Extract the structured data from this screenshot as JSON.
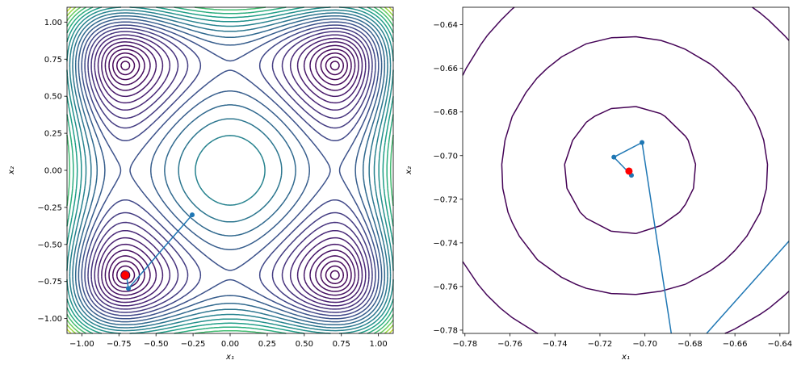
{
  "chart_data": [
    {
      "type": "contour",
      "surface": "(x1^2-0.5)^2 + (x2^2-0.5)^2",
      "levels": [
        0.00175,
        0.007,
        0.01575,
        0.028,
        0.04375,
        0.063,
        0.08575,
        0.112,
        0.14175,
        0.175,
        0.21175,
        0.252,
        0.29575,
        0.343,
        0.39375,
        0.448,
        0.50575,
        0.567,
        0.63175,
        0.7,
        0.77175,
        0.847,
        0.92575,
        1.008
      ],
      "colormap": "viridis",
      "xlim": [
        -1.1,
        1.1
      ],
      "ylim": [
        -1.1,
        1.1
      ],
      "xticks": [
        -1.0,
        -0.75,
        -0.5,
        -0.25,
        0.0,
        0.25,
        0.5,
        0.75,
        1.0
      ],
      "xtick_labels": [
        "−1.00",
        "−0.75",
        "−0.50",
        "−0.25",
        "0.00",
        "0.25",
        "0.50",
        "0.75",
        "1.00"
      ],
      "yticks": [
        -1.0,
        -0.75,
        -0.5,
        -0.25,
        0.0,
        0.25,
        0.5,
        0.75,
        1.0
      ],
      "ytick_labels": [
        "−1.00",
        "−0.75",
        "−0.50",
        "−0.25",
        "0.00",
        "0.25",
        "0.50",
        "0.75",
        "1.00"
      ],
      "xlabel": "x₁",
      "ylabel": "x₂",
      "path": {
        "color": "#1f77b4",
        "points": [
          [
            -0.256,
            -0.3
          ],
          [
            -0.686,
            -0.797
          ],
          [
            -0.7013,
            -0.694
          ],
          [
            -0.7138,
            -0.7007
          ],
          [
            -0.706,
            -0.709
          ]
        ]
      },
      "minimum": {
        "color": "#ff0000",
        "point": [
          -0.7071,
          -0.7071
        ]
      }
    },
    {
      "type": "contour",
      "surface": "(x1^2-0.5)^2 + (x2^2-0.5)^2",
      "levels": [
        0.00175,
        0.007,
        0.01575,
        0.028,
        0.04375,
        0.063,
        0.08575,
        0.112,
        0.14175,
        0.175,
        0.21175,
        0.252,
        0.29575,
        0.343,
        0.39375,
        0.448,
        0.50575,
        0.567,
        0.63175,
        0.7,
        0.77175,
        0.847,
        0.92575,
        1.008
      ],
      "colormap": "viridis",
      "xlim": [
        -0.781,
        -0.636
      ],
      "ylim": [
        -0.7815,
        -0.632
      ],
      "xticks": [
        -0.78,
        -0.76,
        -0.74,
        -0.72,
        -0.7,
        -0.68,
        -0.66,
        -0.64
      ],
      "xtick_labels": [
        "−0.78",
        "−0.76",
        "−0.74",
        "−0.72",
        "−0.70",
        "−0.68",
        "−0.66",
        "−0.64"
      ],
      "yticks": [
        -0.78,
        -0.76,
        -0.74,
        -0.72,
        -0.7,
        -0.68,
        -0.66,
        -0.64
      ],
      "ytick_labels": [
        "−0.78",
        "−0.76",
        "−0.74",
        "−0.72",
        "−0.70",
        "−0.68",
        "−0.66",
        "−0.64"
      ],
      "xlabel": "x₁",
      "ylabel": "x₂",
      "path": {
        "color": "#1f77b4",
        "points": [
          [
            -0.256,
            -0.3
          ],
          [
            -0.686,
            -0.797
          ],
          [
            -0.7013,
            -0.694
          ],
          [
            -0.7138,
            -0.7007
          ],
          [
            -0.706,
            -0.709
          ]
        ]
      },
      "minimum": {
        "color": "#ff0000",
        "point": [
          -0.7071,
          -0.7071
        ]
      }
    }
  ]
}
